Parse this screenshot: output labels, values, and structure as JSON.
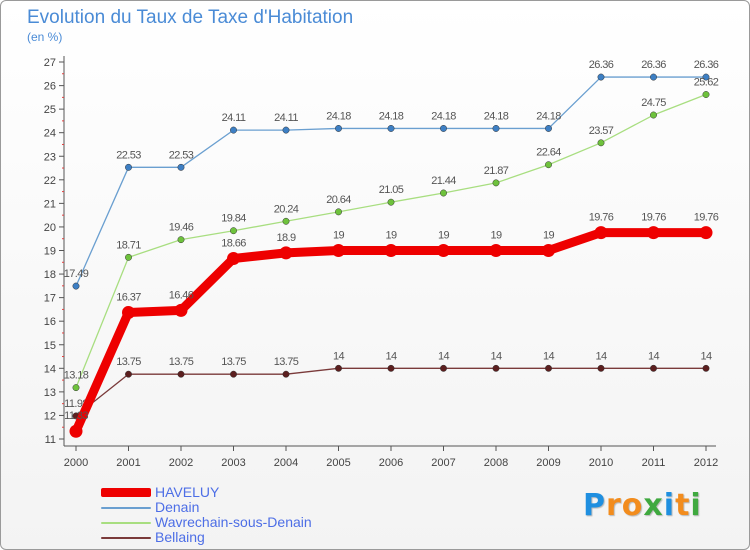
{
  "title": "Evolution du Taux de Taxe d'Habitation",
  "subtitle": "(en %)",
  "logo": {
    "letters": [
      "P",
      "r",
      "o",
      "x",
      "i",
      "t",
      "i"
    ],
    "colors": [
      "#1f8fe0",
      "#f28c1d",
      "#f28c1d",
      "#3fa93f",
      "#1f8fe0",
      "#f28c1d",
      "#3fa93f"
    ]
  },
  "chart_data": {
    "type": "line",
    "title": "Evolution du Taux de Taxe d'Habitation",
    "ylabel": "(en %)",
    "xlabel": "",
    "ylim": [
      11,
      27
    ],
    "yticks": [
      11,
      12,
      13,
      14,
      15,
      16,
      17,
      18,
      19,
      20,
      21,
      22,
      23,
      24,
      25,
      26,
      27
    ],
    "x": [
      "2000",
      "2001",
      "2002",
      "2003",
      "2004",
      "2005",
      "2006",
      "2007",
      "2008",
      "2009",
      "2010",
      "2011",
      "2012"
    ],
    "grid": false,
    "legend_position": "bottom-left",
    "series": [
      {
        "name": "Denain",
        "color": "#6a9fd0",
        "marker_color": "#3d7fc4",
        "values": [
          17.49,
          22.53,
          22.53,
          24.11,
          24.11,
          24.18,
          24.18,
          24.18,
          24.18,
          24.18,
          26.36,
          26.36,
          26.36
        ],
        "labels": [
          "17.49",
          "22.53",
          "22.53",
          "24.11",
          "24.11",
          "24.18",
          "24.18",
          "24.18",
          "24.18",
          "24.18",
          "26.36",
          "26.36",
          "26.36"
        ]
      },
      {
        "name": "Wavrechain-sous-Denain",
        "color": "#a8de80",
        "marker_color": "#6ec23c",
        "values": [
          13.18,
          18.71,
          19.46,
          19.84,
          20.24,
          20.64,
          21.05,
          21.44,
          21.87,
          22.64,
          23.57,
          24.75,
          25.62
        ],
        "labels": [
          "13.18",
          "18.71",
          "19.46",
          "19.84",
          "20.24",
          "20.64",
          "21.05",
          "21.44",
          "21.87",
          "22.64",
          "23.57",
          "24.75",
          "25.62"
        ]
      },
      {
        "name": "Bellaing",
        "color": "#7a3a3a",
        "marker_color": "#5c1f1f",
        "values": [
          11.98,
          13.75,
          13.75,
          13.75,
          13.75,
          14,
          14,
          14,
          14,
          14,
          14,
          14,
          14
        ],
        "labels": [
          "11.98",
          "13.75",
          "13.75",
          "13.75",
          "13.75",
          "14",
          "14",
          "14",
          "14",
          "14",
          "14",
          "14",
          "14"
        ]
      },
      {
        "name": "HAVELUY",
        "color": "#ee0000",
        "marker_color": "#ee0000",
        "values": [
          11.33,
          16.37,
          16.46,
          18.66,
          18.9,
          19,
          19,
          19,
          19,
          19,
          19.76,
          19.76,
          19.76
        ],
        "labels": [
          "11.33",
          "16.37",
          "16.46",
          "18.66",
          "18.9",
          "19",
          "19",
          "19",
          "19",
          "19",
          "19.76",
          "19.76",
          "19.76"
        ]
      }
    ],
    "legend": [
      "HAVELUY",
      "Denain",
      "Wavrechain-sous-Denain",
      "Bellaing"
    ]
  }
}
